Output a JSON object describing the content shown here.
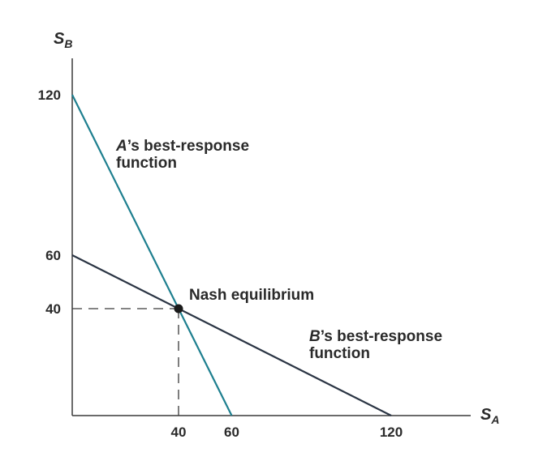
{
  "chart_data": {
    "type": "line",
    "xlabel": {
      "var": "S",
      "sub": "A"
    },
    "ylabel": {
      "var": "S",
      "sub": "B"
    },
    "xlim": [
      0,
      150
    ],
    "ylim": [
      0,
      130
    ],
    "x_ticks": [
      {
        "value": 40,
        "label": "40"
      },
      {
        "value": 60,
        "label": "60"
      },
      {
        "value": 120,
        "label": "120"
      }
    ],
    "y_ticks": [
      {
        "value": 40,
        "label": "40"
      },
      {
        "value": 60,
        "label": "60"
      },
      {
        "value": 120,
        "label": "120"
      }
    ],
    "series": [
      {
        "key": "a",
        "color": "#1e7f8f",
        "points": [
          [
            0,
            120
          ],
          [
            60,
            0
          ]
        ],
        "label_var": "A",
        "label_rest": "’s best-response",
        "label_line2": "function"
      },
      {
        "key": "b",
        "color": "#2b3544",
        "points": [
          [
            0,
            60
          ],
          [
            120,
            0
          ]
        ],
        "label_var": "B",
        "label_rest": "’s best-response",
        "label_line2": "function"
      }
    ],
    "equilibrium": {
      "x": 40,
      "y": 40,
      "label": "Nash equilibrium"
    },
    "grid": false
  }
}
